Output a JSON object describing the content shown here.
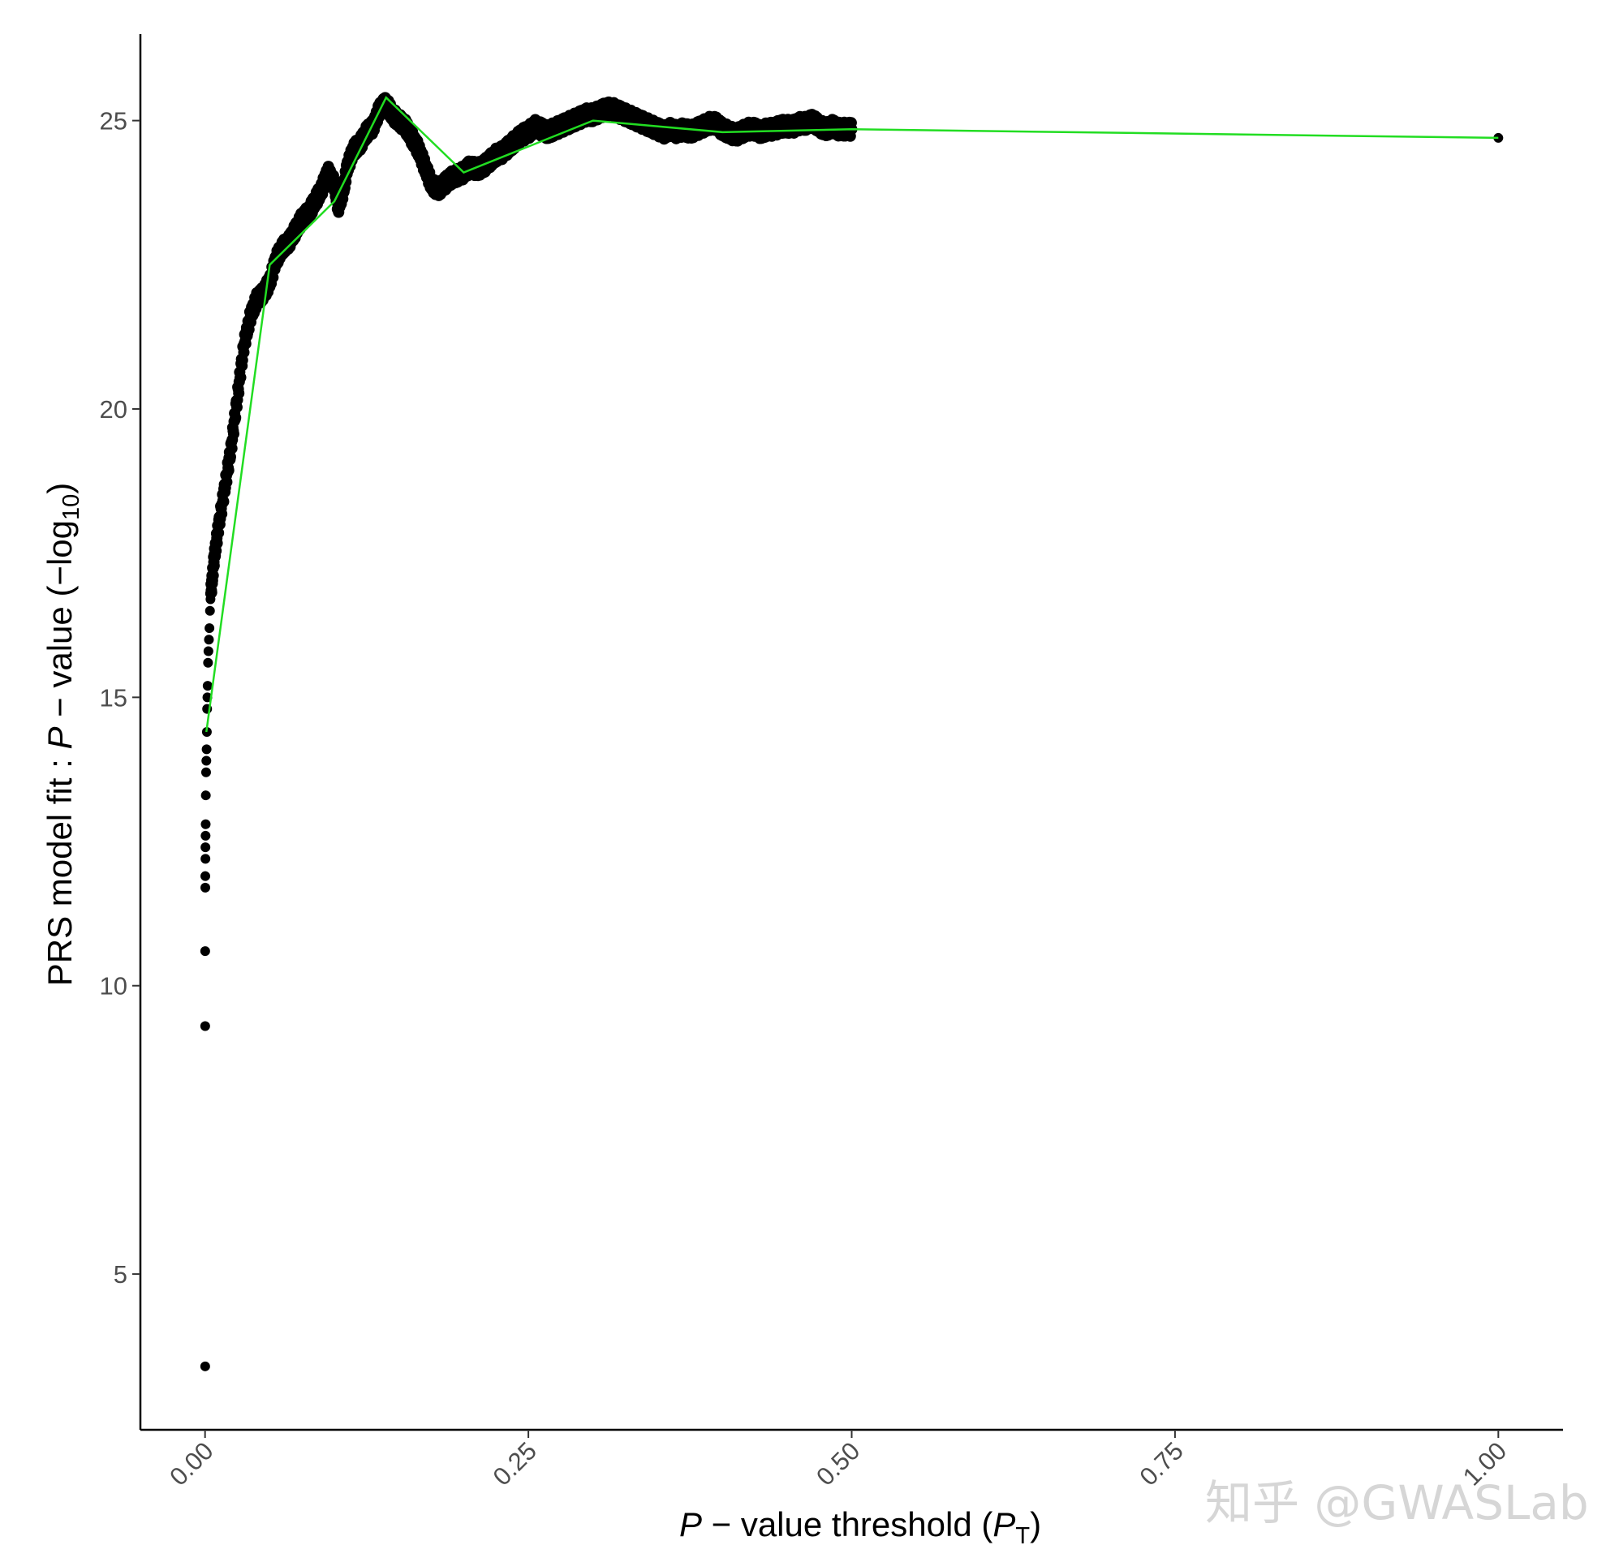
{
  "chart_data": {
    "type": "scatter",
    "title": "",
    "xlabel": {
      "italic_part": "P",
      "middle": " − value threshold (",
      "italic_part2": "P",
      "subscript": "T",
      "suffix": ")"
    },
    "ylabel": {
      "prefix": "PRS model fit :  ",
      "italic_part": "P",
      "middle": " − value (−log",
      "subscript": "10",
      "suffix": ")"
    },
    "xlim": [
      -0.05,
      1.05
    ],
    "ylim": [
      2.3,
      26.5
    ],
    "x_ticks": [
      0.0,
      0.25,
      0.5,
      0.75,
      1.0
    ],
    "x_tick_labels": [
      "0.00",
      "0.25",
      "0.50",
      "0.75",
      "1.00"
    ],
    "y_ticks": [
      5,
      10,
      15,
      20,
      25
    ],
    "y_tick_labels": [
      "5",
      "10",
      "15",
      "20",
      "25"
    ],
    "grid": false,
    "scatter_color": "#000000",
    "line_color": "#22dd22",
    "isolated_points": [
      {
        "x": 0.0001,
        "y": 3.4
      },
      {
        "x": 0.0001,
        "y": 9.3
      },
      {
        "x": 0.0001,
        "y": 10.6
      },
      {
        "x": 0.0002,
        "y": 11.7
      },
      {
        "x": 0.0002,
        "y": 11.9
      },
      {
        "x": 0.0003,
        "y": 12.2
      },
      {
        "x": 0.0003,
        "y": 12.4
      },
      {
        "x": 0.0004,
        "y": 12.6
      },
      {
        "x": 0.0005,
        "y": 12.8
      },
      {
        "x": 0.0006,
        "y": 13.3
      },
      {
        "x": 0.0008,
        "y": 13.7
      },
      {
        "x": 0.001,
        "y": 13.9
      },
      {
        "x": 0.0012,
        "y": 14.1
      },
      {
        "x": 0.0014,
        "y": 14.4
      },
      {
        "x": 0.0016,
        "y": 14.8
      },
      {
        "x": 0.0018,
        "y": 15.0
      },
      {
        "x": 0.002,
        "y": 15.2
      },
      {
        "x": 0.0023,
        "y": 15.6
      },
      {
        "x": 0.0026,
        "y": 15.8
      },
      {
        "x": 0.003,
        "y": 16.0
      },
      {
        "x": 0.0034,
        "y": 16.2
      },
      {
        "x": 0.0038,
        "y": 16.5
      },
      {
        "x": 0.0042,
        "y": 16.7
      },
      {
        "x": 1.0,
        "y": 24.7
      }
    ],
    "dense_curve": [
      [
        0.0045,
        16.8
      ],
      [
        0.007,
        17.4
      ],
      [
        0.01,
        17.9
      ],
      [
        0.015,
        18.6
      ],
      [
        0.02,
        19.3
      ],
      [
        0.025,
        20.2
      ],
      [
        0.03,
        21.1
      ],
      [
        0.035,
        21.6
      ],
      [
        0.04,
        21.9
      ],
      [
        0.045,
        22.0
      ],
      [
        0.05,
        22.2
      ],
      [
        0.055,
        22.6
      ],
      [
        0.06,
        22.8
      ],
      [
        0.065,
        22.9
      ],
      [
        0.07,
        23.1
      ],
      [
        0.075,
        23.3
      ],
      [
        0.08,
        23.4
      ],
      [
        0.085,
        23.6
      ],
      [
        0.09,
        23.8
      ],
      [
        0.095,
        24.1
      ],
      [
        0.1,
        23.9
      ],
      [
        0.103,
        23.5
      ],
      [
        0.107,
        23.8
      ],
      [
        0.11,
        24.2
      ],
      [
        0.115,
        24.5
      ],
      [
        0.12,
        24.6
      ],
      [
        0.125,
        24.8
      ],
      [
        0.13,
        24.9
      ],
      [
        0.135,
        25.2
      ],
      [
        0.14,
        25.3
      ],
      [
        0.145,
        25.1
      ],
      [
        0.15,
        25.0
      ],
      [
        0.155,
        24.9
      ],
      [
        0.16,
        24.7
      ],
      [
        0.165,
        24.5
      ],
      [
        0.17,
        24.2
      ],
      [
        0.175,
        23.9
      ],
      [
        0.18,
        23.8
      ],
      [
        0.185,
        23.9
      ],
      [
        0.19,
        24.0
      ],
      [
        0.195,
        24.05
      ],
      [
        0.2,
        24.1
      ],
      [
        0.205,
        24.2
      ],
      [
        0.21,
        24.15
      ],
      [
        0.215,
        24.2
      ],
      [
        0.22,
        24.3
      ],
      [
        0.225,
        24.4
      ],
      [
        0.23,
        24.45
      ],
      [
        0.235,
        24.55
      ],
      [
        0.24,
        24.65
      ],
      [
        0.245,
        24.75
      ],
      [
        0.25,
        24.8
      ],
      [
        0.255,
        24.9
      ],
      [
        0.26,
        24.85
      ],
      [
        0.265,
        24.8
      ],
      [
        0.27,
        24.85
      ],
      [
        0.275,
        24.9
      ],
      [
        0.28,
        24.95
      ],
      [
        0.285,
        25.0
      ],
      [
        0.29,
        25.05
      ],
      [
        0.295,
        25.1
      ],
      [
        0.3,
        25.1
      ],
      [
        0.305,
        25.15
      ],
      [
        0.31,
        25.2
      ],
      [
        0.315,
        25.2
      ],
      [
        0.32,
        25.15
      ],
      [
        0.325,
        25.1
      ],
      [
        0.33,
        25.05
      ],
      [
        0.335,
        25.0
      ],
      [
        0.34,
        24.95
      ],
      [
        0.345,
        24.9
      ],
      [
        0.35,
        24.85
      ],
      [
        0.355,
        24.8
      ],
      [
        0.36,
        24.85
      ],
      [
        0.365,
        24.8
      ],
      [
        0.37,
        24.85
      ],
      [
        0.375,
        24.8
      ],
      [
        0.38,
        24.85
      ],
      [
        0.385,
        24.9
      ],
      [
        0.39,
        24.95
      ],
      [
        0.395,
        24.95
      ],
      [
        0.4,
        24.85
      ],
      [
        0.405,
        24.8
      ],
      [
        0.41,
        24.75
      ],
      [
        0.415,
        24.8
      ],
      [
        0.42,
        24.85
      ],
      [
        0.425,
        24.85
      ],
      [
        0.43,
        24.8
      ],
      [
        0.435,
        24.85
      ],
      [
        0.44,
        24.85
      ],
      [
        0.445,
        24.9
      ],
      [
        0.45,
        24.9
      ],
      [
        0.455,
        24.9
      ],
      [
        0.46,
        24.95
      ],
      [
        0.465,
        24.95
      ],
      [
        0.47,
        25.0
      ],
      [
        0.475,
        24.9
      ],
      [
        0.48,
        24.85
      ],
      [
        0.485,
        24.9
      ],
      [
        0.49,
        24.85
      ],
      [
        0.495,
        24.85
      ],
      [
        0.5,
        24.85
      ]
    ],
    "line_series": {
      "x": [
        0.001,
        0.05,
        0.1,
        0.14,
        0.2,
        0.3,
        0.4,
        0.5,
        1.0
      ],
      "y": [
        14.4,
        22.5,
        23.6,
        25.4,
        24.1,
        25.0,
        24.8,
        24.85,
        24.7
      ]
    }
  },
  "watermark": "知乎 @GWASLab"
}
